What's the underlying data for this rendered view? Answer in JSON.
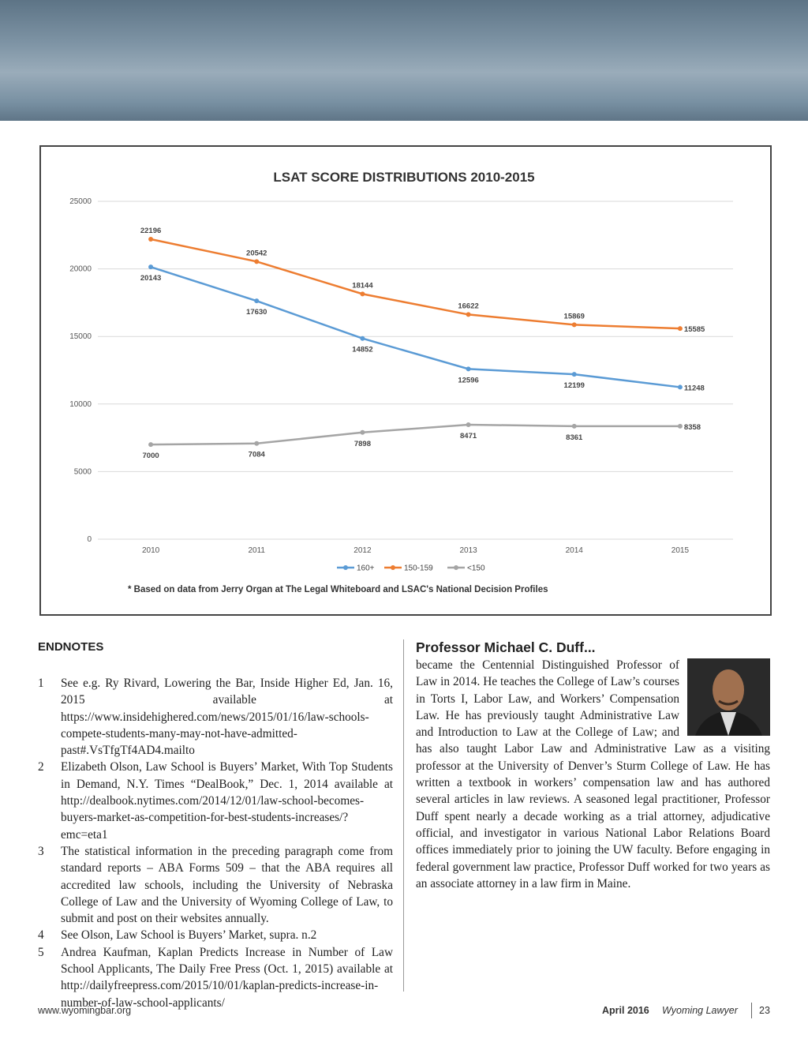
{
  "chart_data": {
    "type": "line",
    "title": "LSAT SCORE DISTRIBUTIONS 2010-2015",
    "categories": [
      "2010",
      "2011",
      "2012",
      "2013",
      "2014",
      "2015"
    ],
    "series": [
      {
        "name": "160+",
        "color": "#5b9bd5",
        "values": [
          20143,
          17630,
          14852,
          12596,
          12199,
          11248
        ]
      },
      {
        "name": "150-159",
        "color": "#ed7d31",
        "values": [
          22196,
          20542,
          18144,
          16622,
          15869,
          15585
        ]
      },
      {
        "name": "<150",
        "color": "#a5a5a5",
        "values": [
          7000,
          7084,
          7898,
          8471,
          8361,
          8358
        ]
      }
    ],
    "ylim": [
      0,
      25000
    ],
    "yticks": [
      0,
      5000,
      10000,
      15000,
      20000,
      25000
    ],
    "grid": true,
    "legend": "bottom",
    "note": "* Based on data from Jerry Organ at The Legal Whiteboard and LSAC's National Decision Profiles"
  },
  "endnotes": {
    "title": "ENDNOTES",
    "items": [
      {
        "number": "1",
        "text": "See e.g. Ry Rivard, Lowering the Bar, Inside Higher Ed, Jan. 16, 2015 available at https://www.insidehighered.com/news/2015/01/16/law-schools-compete-students-many-may-not-have-admitted-past#.VsTfgTf4AD4.mailto"
      },
      {
        "number": "2",
        "text": "Elizabeth Olson, Law School is Buyers’ Market, With Top Students in Demand, N.Y. Times “DealBook,” Dec. 1, 2014 available at http://dealbook.nytimes.com/2014/12/01/law-school-becomes-buyers-market-as-competition-for-best-students-increases/?emc=eta1"
      },
      {
        "number": "3",
        "text": "The statistical information in the preceding paragraph come from standard reports – ABA Forms 509 – that the ABA requires all accredited law schools, including the University of Nebraska College of Law and the University of Wyoming College of Law, to submit and post on their websites annually."
      },
      {
        "number": "4",
        "text": "See Olson, Law School is Buyers’ Market, supra. n.2"
      },
      {
        "number": "5",
        "text": "Andrea Kaufman, Kaplan Predicts Increase in Number of Law School Applicants, The Daily Free Press (Oct. 1, 2015) available at http://dailyfreepress.com/2015/10/01/kaplan-predicts-increase-in-number-of-law-school-applicants/"
      }
    ]
  },
  "bio": {
    "title": "Professor Michael C. Duff...",
    "text": "became the Centennial Distinguished Professor of Law in 2014. He teaches the College of Law’s courses in Torts I, Labor Law, and Workers’ Compensation Law. He has previously taught Administrative Law and Introduction to Law at the College of Law; and has also taught Labor Law and Administrative Law as a visiting professor at the University of Denver’s Sturm College of Law. He has written a textbook in workers’ compensation law and has authored several articles in law reviews. A seasoned legal practitioner, Professor Duff spent nearly a decade working as a trial attorney, adjudicative official, and investigator in various National Labor Relations Board offices immediately prior to joining the UW faculty. Before engaging in federal government law practice, Professor Duff worked for two years as an associate attorney in a law firm in Maine."
  },
  "footer": {
    "website": "www.wyomingbar.org",
    "date": "April 2016",
    "publication": "Wyoming Lawyer",
    "page": "23"
  }
}
